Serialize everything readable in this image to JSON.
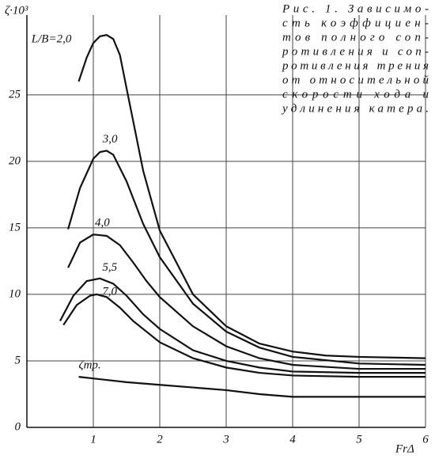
{
  "chart_data": {
    "type": "line",
    "y_label": "ζ·10³",
    "x_label": "FrΔ",
    "xlim": [
      0,
      6
    ],
    "ylim": [
      0,
      31
    ],
    "xticks": [
      1,
      2,
      3,
      4,
      5,
      6
    ],
    "yticks": [
      0,
      5,
      10,
      15,
      20,
      25
    ],
    "grid": true,
    "color": "#111111",
    "series": [
      {
        "name": "L/B=2,0",
        "x": [
          0.78,
          0.9,
          1.0,
          1.1,
          1.2,
          1.3,
          1.4,
          1.5,
          1.75,
          2.0,
          2.5,
          3.0,
          3.5,
          4.0,
          4.5,
          5.0,
          6.0
        ],
        "values": [
          26,
          27.8,
          28.9,
          29.4,
          29.5,
          29.2,
          28,
          25.5,
          19.3,
          14.8,
          10,
          7.6,
          6.3,
          5.7,
          5.4,
          5.3,
          5.2
        ]
      },
      {
        "name": "3,0",
        "x": [
          0.62,
          0.8,
          1.0,
          1.1,
          1.2,
          1.3,
          1.5,
          1.75,
          2.0,
          2.5,
          3.0,
          3.5,
          4.0,
          5.0,
          6.0
        ],
        "values": [
          14.9,
          18,
          20.2,
          20.7,
          20.8,
          20.5,
          18.5,
          15.3,
          12.8,
          9.3,
          7.2,
          6,
          5.3,
          4.8,
          4.7
        ]
      },
      {
        "name": "4,0",
        "x": [
          0.62,
          0.8,
          1.0,
          1.2,
          1.4,
          1.6,
          1.8,
          2.0,
          2.5,
          3.0,
          3.5,
          4.0,
          5.0,
          6.0
        ],
        "values": [
          12,
          13.9,
          14.5,
          14.4,
          13.7,
          12.4,
          11,
          9.8,
          7.6,
          6.1,
          5.2,
          4.7,
          4.4,
          4.4
        ]
      },
      {
        "name": "5,5",
        "x": [
          0.5,
          0.7,
          0.9,
          1.1,
          1.3,
          1.5,
          1.75,
          2.0,
          2.5,
          3.0,
          3.5,
          4.0,
          5.0,
          6.0
        ],
        "values": [
          8,
          9.9,
          11,
          11.2,
          10.8,
          9.9,
          8.5,
          7.4,
          5.8,
          5,
          4.5,
          4.2,
          4.1,
          4.1
        ]
      },
      {
        "name": "7,0",
        "x": [
          0.55,
          0.75,
          0.95,
          1.05,
          1.2,
          1.4,
          1.6,
          2.0,
          2.5,
          3.0,
          3.5,
          4.0,
          5.0,
          6.0
        ],
        "values": [
          7.7,
          9.2,
          9.9,
          10,
          9.8,
          9,
          8,
          6.4,
          5.2,
          4.5,
          4.1,
          3.9,
          3.8,
          3.8
        ]
      },
      {
        "name": "ζтр.",
        "x": [
          0.78,
          1.5,
          2.0,
          2.5,
          3.0,
          3.5,
          4.0,
          5.0,
          6.0
        ],
        "values": [
          3.8,
          3.4,
          3.2,
          3.0,
          2.8,
          2.5,
          2.3,
          2.3,
          2.3
        ]
      }
    ],
    "caption": [
      "Рис. 1. Зависимо-",
      "сть коэффициен-",
      "тов полного соп-",
      "ротивления и соп-",
      "ротивления трения",
      "от относительной",
      "скорости хода и",
      "удлинения катера."
    ]
  }
}
